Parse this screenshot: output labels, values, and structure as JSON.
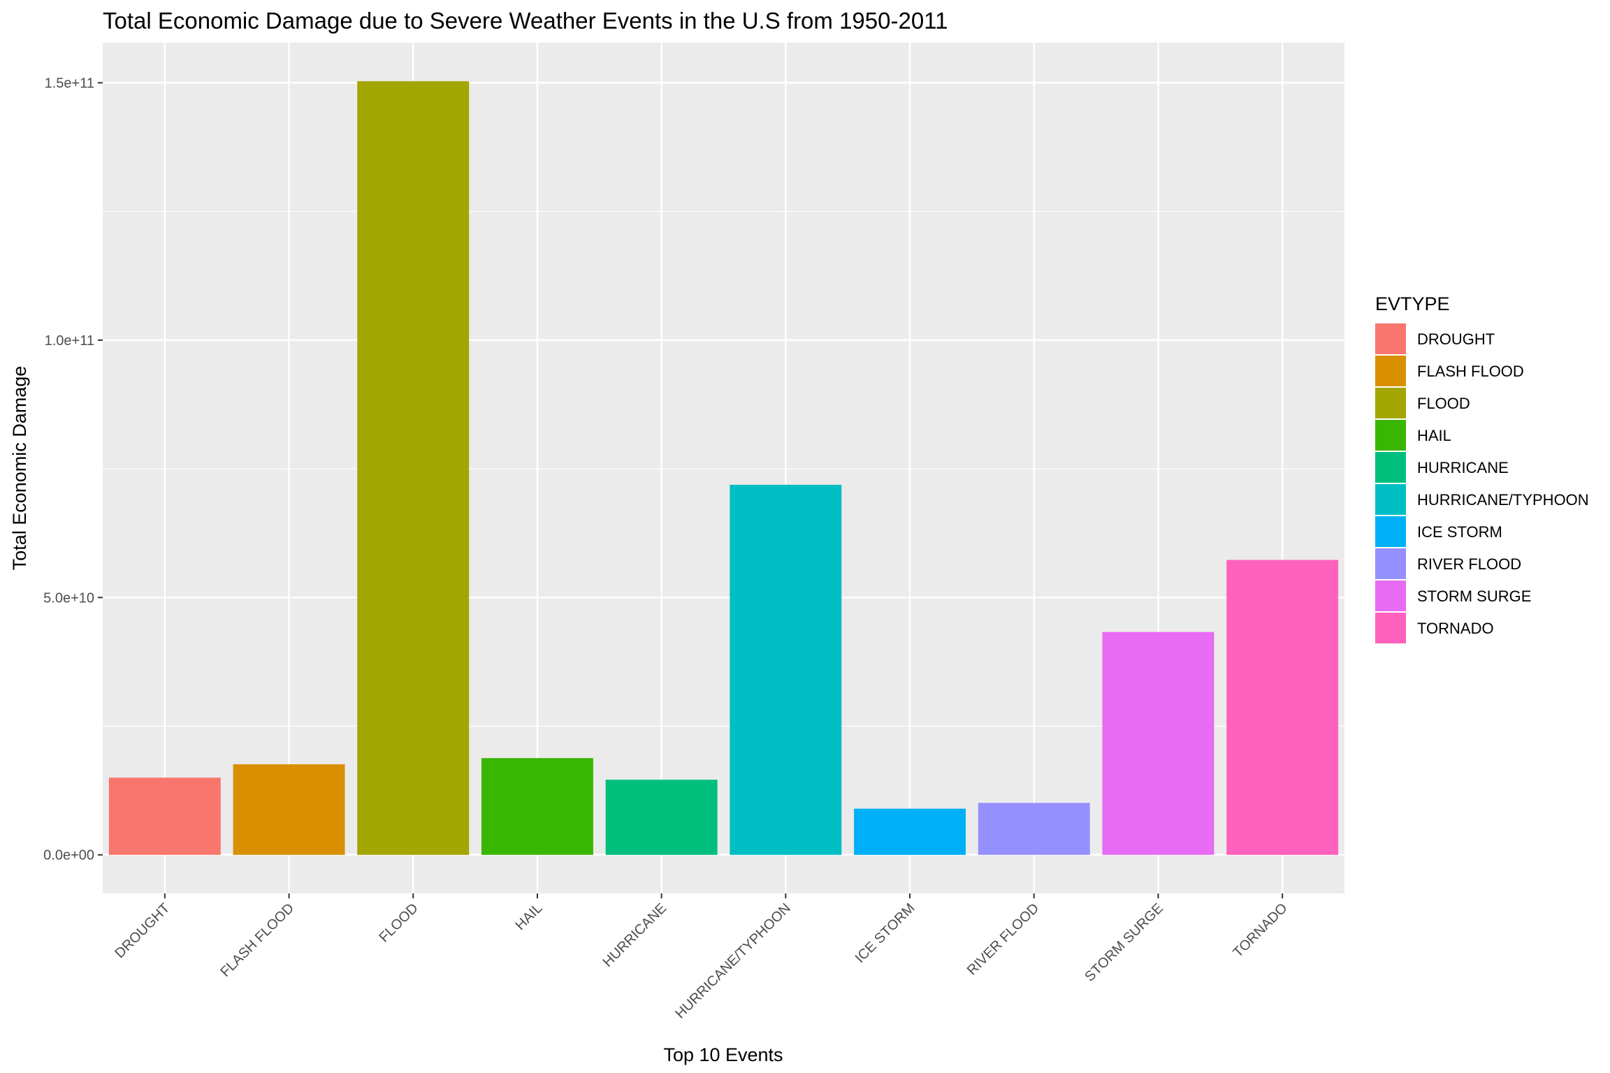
{
  "chart_data": {
    "type": "bar",
    "title": "Total Economic Damage due to Severe Weather Events in the U.S from 1950-2011",
    "xlabel": "Top 10 Events",
    "ylabel": "Total Economic Damage",
    "categories": [
      "DROUGHT",
      "FLASH FLOOD",
      "FLOOD",
      "HAIL",
      "HURRICANE",
      "HURRICANE/TYPHOON",
      "ICE STORM",
      "RIVER FLOOD",
      "STORM SURGE",
      "TORNADO"
    ],
    "values": [
      15000000000,
      17600000000,
      150300000000,
      18800000000,
      14600000000,
      71900000000,
      8970000000,
      10100000000,
      43300000000,
      57300000000
    ],
    "colors": [
      "#F8766D",
      "#D89000",
      "#A3A500",
      "#39B600",
      "#00BF7D",
      "#00BFC4",
      "#00B0F6",
      "#9590FF",
      "#E76BF3",
      "#FF62BC"
    ],
    "ylim": [
      -7500000000,
      157800000000
    ],
    "y_ticks": [
      0,
      50000000000,
      100000000000,
      150000000000
    ],
    "y_tick_labels": [
      "0.0e+00",
      "5.0e+10",
      "1.0e+11",
      "1.5e+11"
    ],
    "grid": true,
    "panel_background": "#EBEBEB",
    "legend": {
      "title": "EVTYPE",
      "position": "right",
      "entries": [
        "DROUGHT",
        "FLASH FLOOD",
        "FLOOD",
        "HAIL",
        "HURRICANE",
        "HURRICANE/TYPHOON",
        "ICE STORM",
        "RIVER FLOOD",
        "STORM SURGE",
        "TORNADO"
      ]
    }
  }
}
